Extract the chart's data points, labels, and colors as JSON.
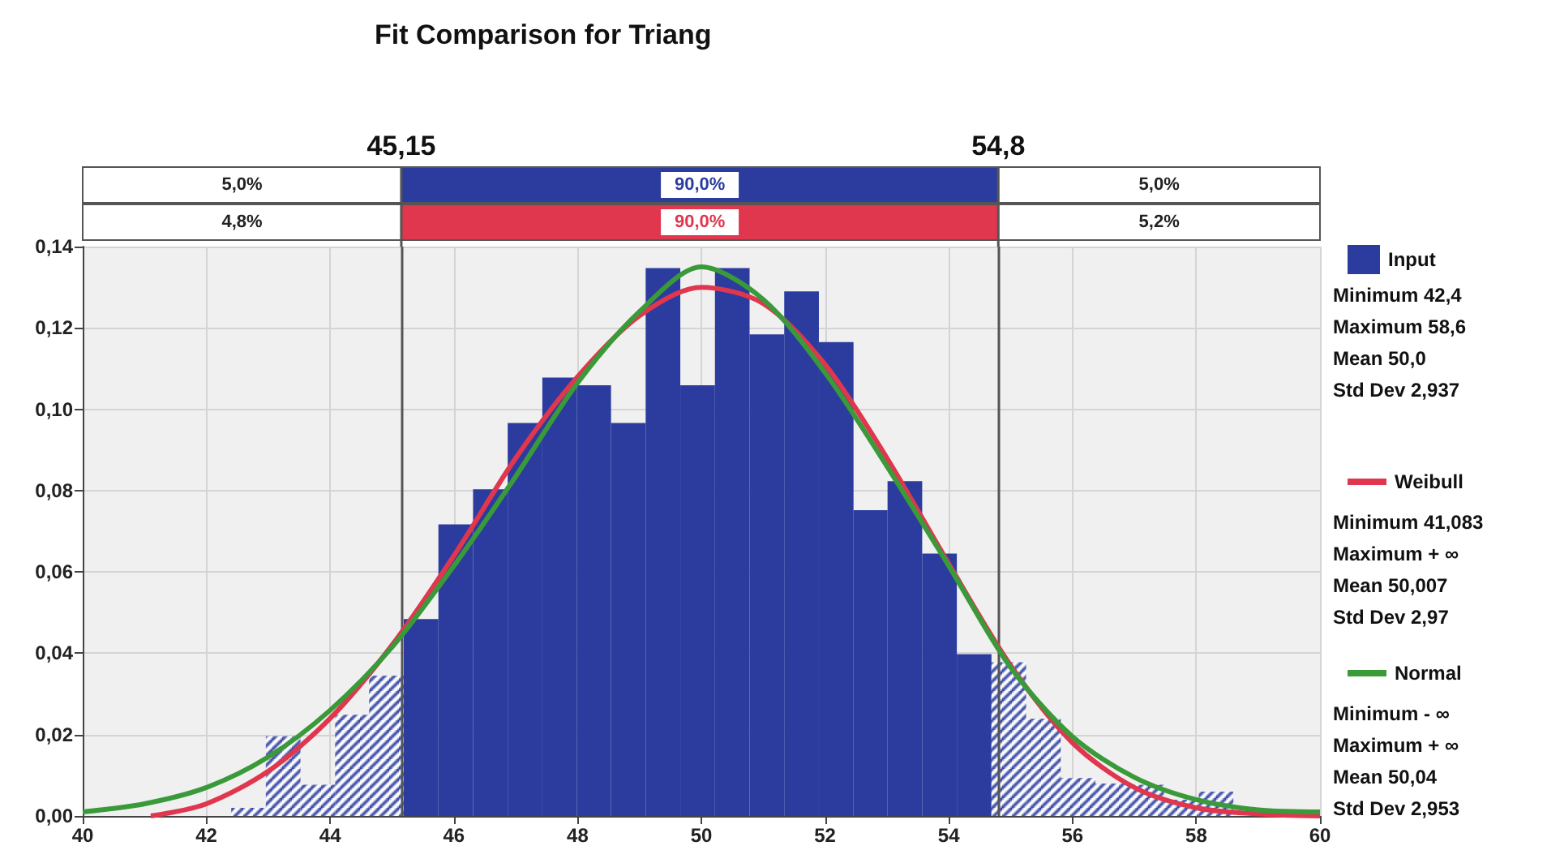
{
  "chart_data": {
    "type": "histogram",
    "title": "Fit Comparison for Triang",
    "bins": [
      42.4,
      42.96,
      43.52,
      44.08,
      44.63,
      45.19,
      45.75,
      46.31,
      46.87,
      47.43,
      47.99,
      48.54,
      49.1,
      49.66,
      50.22,
      50.78,
      51.34,
      51.9,
      52.46,
      53.01,
      53.57,
      54.13,
      54.69,
      55.25,
      55.81,
      56.37,
      56.92,
      57.48,
      58.04,
      58.6
    ],
    "series": [
      {
        "name": "Input",
        "color": "#2b3c9e",
        "values": [
          0.002,
          0.0196,
          0.0077,
          0.0249,
          0.0345,
          0.0484,
          0.0717,
          0.0803,
          0.0966,
          0.1078,
          0.1059,
          0.0966,
          0.1347,
          0.1059,
          0.1347,
          0.1184,
          0.129,
          0.1165,
          0.0752,
          0.0823,
          0.0645,
          0.0398,
          0.0378,
          0.0239,
          0.0093,
          0.008,
          0.0077,
          0.004,
          0.006
        ]
      },
      {
        "name": "Weibull",
        "type": "line",
        "color": "#e0364e",
        "x": [
          41.1,
          42,
          43,
          44,
          45,
          46,
          47,
          48,
          49,
          50,
          51,
          52,
          53,
          54,
          55,
          56,
          57,
          58,
          59,
          60
        ],
        "values": [
          0,
          0.003,
          0.011,
          0.024,
          0.042,
          0.064,
          0.088,
          0.108,
          0.123,
          0.13,
          0.126,
          0.111,
          0.088,
          0.062,
          0.037,
          0.018,
          0.007,
          0.002,
          0.0005,
          0
        ]
      },
      {
        "name": "Normal",
        "type": "line",
        "color": "#3a9a3a",
        "x": [
          40,
          41,
          42,
          43,
          44,
          45,
          46,
          47,
          48,
          49,
          50,
          51,
          52,
          53,
          54,
          55,
          56,
          57,
          58,
          59,
          60
        ],
        "values": [
          0.001,
          0.003,
          0.007,
          0.0145,
          0.026,
          0.0415,
          0.0615,
          0.0835,
          0.1065,
          0.124,
          0.135,
          0.127,
          0.109,
          0.086,
          0.0615,
          0.0365,
          0.0195,
          0.0095,
          0.004,
          0.0015,
          0.001
        ]
      }
    ],
    "xlim": [
      40,
      60
    ],
    "xticks": [
      40,
      42,
      44,
      46,
      48,
      50,
      52,
      54,
      56,
      58,
      60
    ],
    "ylim": [
      0,
      0.14
    ],
    "yticks": [
      {
        "value": 0,
        "label": "0,00"
      },
      {
        "value": 0.02,
        "label": "0,02"
      },
      {
        "value": 0.04,
        "label": "0,04"
      },
      {
        "value": 0.06,
        "label": "0,06"
      },
      {
        "value": 0.08,
        "label": "0,08"
      },
      {
        "value": 0.1,
        "label": "0,10"
      },
      {
        "value": 0.12,
        "label": "0,12"
      },
      {
        "value": 0.14,
        "label": "0,14"
      }
    ],
    "ref_lines": [
      {
        "axis": "x",
        "value": 45.15,
        "label": "45,15",
        "color": "#555555"
      },
      {
        "axis": "x",
        "value": 54.8,
        "label": "54,8",
        "color": "#555555"
      }
    ],
    "annotations": [
      "5,0%",
      "90,0%",
      "5,0%",
      "4,8%",
      "90,0%",
      "5,2%",
      "Minimum 42,4",
      "Maximum 58,6",
      "Mean 50,0",
      "Std Dev 2,937",
      "Minimum 41,083",
      "Maximum + ∞",
      "Mean 50,007",
      "Std Dev 2,97",
      "Minimum - ∞",
      "Maximum + ∞",
      "Mean 50,04",
      "Std Dev 2,953"
    ],
    "grid": true,
    "legend": "right",
    "marker": "none"
  }
}
